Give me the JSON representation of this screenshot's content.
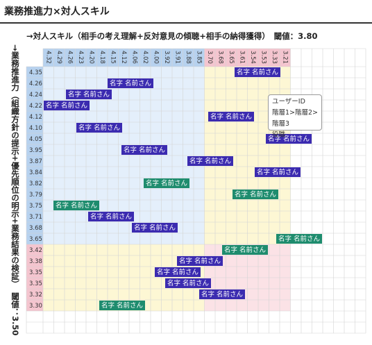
{
  "title": "業務推進力×対人スキル",
  "x_axis_label": "→対人スキル（相手の考え理解+反対意見の傾聴+相手の納得獲得）　閾値：3.80",
  "y_axis_label": "→業務推進力（組織方針の提示+優先順位の明示+業務結果の検証）　閾値：3.50",
  "columns": [
    "4.32",
    "4.29",
    "4.26",
    "4.23",
    "4.20",
    "4.18",
    "4.15",
    "4.12",
    "4.06",
    "4.02",
    "4.00",
    "3.92",
    "3.91",
    "3.88",
    "3.85",
    "3.70",
    "3.68",
    "3.65",
    "3.61",
    "3.54",
    "3.53",
    "3.33",
    "3.21"
  ],
  "rows": [
    {
      "value": "4.35",
      "name": "名字 名前さん",
      "color": "#3b2bb0"
    },
    {
      "value": "4.26",
      "name": "名字 名前さん",
      "color": "#3b2bb0"
    },
    {
      "value": "4.24",
      "name": "名字 名前さん",
      "color": "#3b2bb0"
    },
    {
      "value": "4.22",
      "name": "名字 名前さん",
      "color": "#3b2bb0"
    },
    {
      "value": "4.12",
      "name": "名字 名前さん",
      "color": "#3b2bb0"
    },
    {
      "value": "4.10",
      "name": "名字 名前さん",
      "color": "#3b2bb0"
    },
    {
      "value": "4.05",
      "name": "名字 名前さん",
      "color": "#3b2bb0"
    },
    {
      "value": "3.95",
      "name": "名字 名前さん",
      "color": "#3b2bb0"
    },
    {
      "value": "3.87",
      "name": "名字 名前さん",
      "color": "#3b2bb0"
    },
    {
      "value": "3.84",
      "name": "名字 名前さん",
      "color": "#3b2bb0"
    },
    {
      "value": "3.82",
      "name": "名字 名前さん",
      "color": "#1e8c6e"
    },
    {
      "value": "3.79",
      "name": "名字 名前さん",
      "color": "#1e8c6e"
    },
    {
      "value": "3.75",
      "name": "名字 名前さん",
      "color": "#1e8c6e"
    },
    {
      "value": "3.71",
      "name": "名字 名前さん",
      "color": "#3b2bb0"
    },
    {
      "value": "3.68",
      "name": "名字 名前さん",
      "color": "#3b2bb0"
    },
    {
      "value": "3.65",
      "name": "名字 名前さん",
      "color": "#1e8c6e"
    },
    {
      "value": "3.42",
      "name": "名字 名前さん",
      "color": "#1e8c6e"
    },
    {
      "value": "3.38",
      "name": "名字 名前さん",
      "color": "#3b2bb0"
    },
    {
      "value": "3.35",
      "name": "名字 名前さん",
      "color": "#3b2bb0"
    },
    {
      "value": "3.35",
      "name": "名字 名前さん",
      "color": "#3b2bb0"
    },
    {
      "value": "3.32",
      "name": "名字 名前さん",
      "color": "#3b2bb0"
    },
    {
      "value": "3.30",
      "name": "名字 名前さん",
      "color": "#1e8c6e"
    }
  ],
  "tooltip": {
    "user_id": "ユーザーID",
    "hierarchy": "階層1>階層2>階層3",
    "role": "役職"
  }
}
